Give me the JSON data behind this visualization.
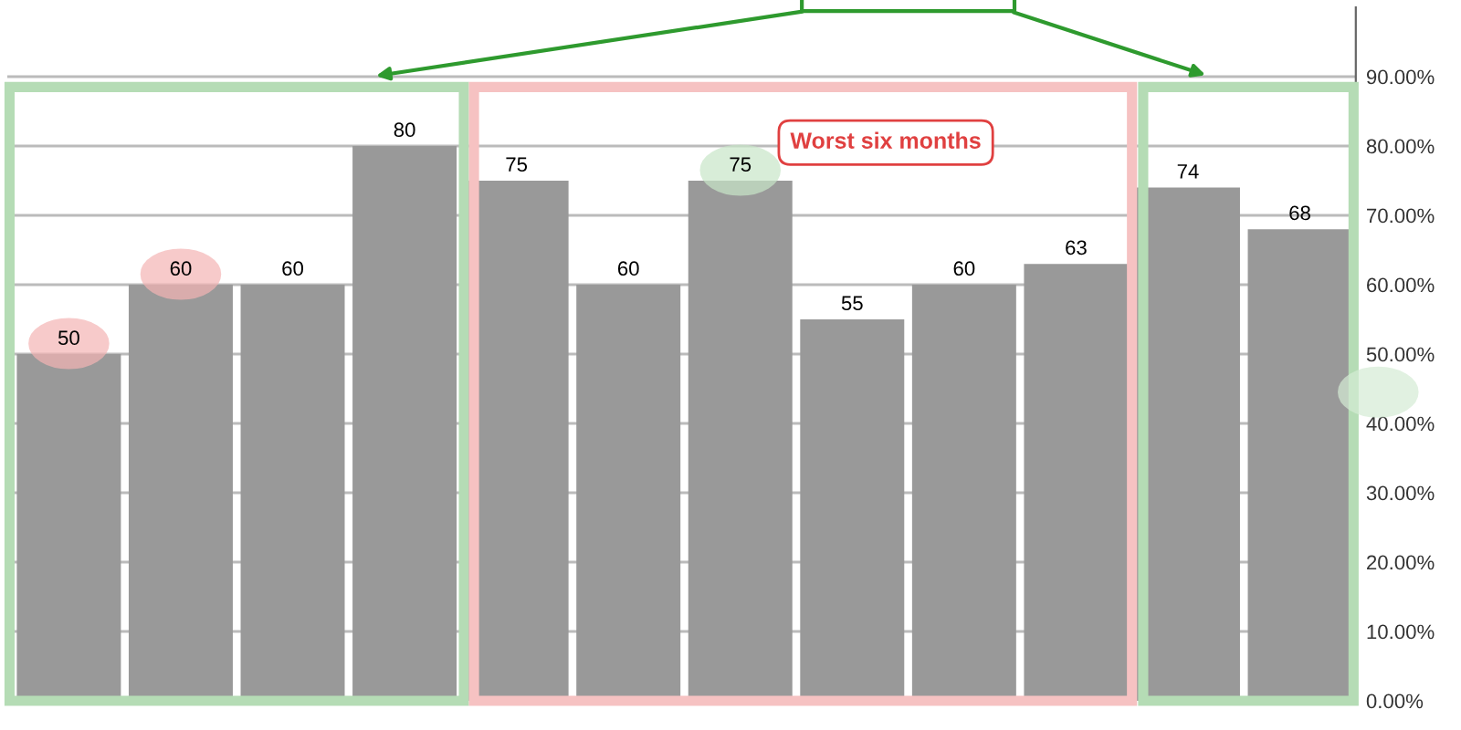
{
  "chart_data": {
    "type": "bar",
    "categories": [
      null,
      null,
      null,
      null,
      null,
      null,
      null,
      null,
      null,
      null,
      null,
      null
    ],
    "values": [
      50,
      60,
      60,
      80,
      75,
      60,
      75,
      55,
      60,
      63,
      74,
      68
    ],
    "color": "#999999",
    "data_labels": true,
    "ylim": [
      0,
      100
    ],
    "yticks": [
      {
        "value": 0,
        "label": "0.00%"
      },
      {
        "value": 10,
        "label": "10.00%"
      },
      {
        "value": 20,
        "label": "20.00%"
      },
      {
        "value": 30,
        "label": "30.00%"
      },
      {
        "value": 40,
        "label": "40.00%"
      },
      {
        "value": 50,
        "label": "50.00%"
      },
      {
        "value": 60,
        "label": "60.00%"
      },
      {
        "value": 70,
        "label": "70.00%"
      },
      {
        "value": 80,
        "label": "80.00%"
      },
      {
        "value": 90,
        "label": "90.00%"
      }
    ],
    "grid": "y",
    "tick_labels": "y",
    "annotations": [
      "Worst six months"
    ]
  }
}
